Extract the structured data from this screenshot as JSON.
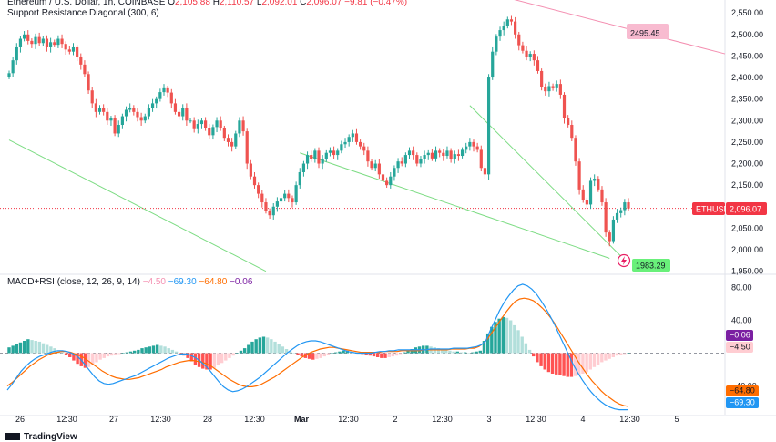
{
  "header": {
    "symbol_line": "Ethereum / U.S. Dollar, 1h, COINBASE",
    "o_label": "O",
    "o_value": "2,105.88",
    "h_label": "H",
    "h_value": "2,110.57",
    "l_label": "L",
    "l_value": "2,092.01",
    "c_label": "C",
    "c_value": "2,096.07",
    "change": "−9.81 (−0.47%)",
    "indicator1": "Support Resistance Diagonal (300, 6)",
    "indicator2_name": "MACD+RSI (close, 12, 26, 9, 14)",
    "indicator2_values": [
      "−4.50",
      "−69.30",
      "−64.80",
      "−0.06"
    ]
  },
  "footer": {
    "brand": "TradingView"
  },
  "colors": {
    "up": "#26a69a",
    "down": "#ef5350",
    "macd": "#2196f3",
    "signal": "#ff6d00",
    "support": "#4caf50",
    "resistance": "#f48fb1",
    "badge_ethusd": "#f23645"
  },
  "chart_data": [
    {
      "type": "candlestick",
      "symbol": "ETHUSD",
      "x_ticks": [
        "26",
        "12:30",
        "27",
        "12:30",
        "28",
        "12:30",
        "Mar",
        "12:30",
        "2",
        "12:30",
        "3",
        "12:30",
        "4",
        "12:30",
        "5"
      ],
      "y_ticks": [
        1950,
        2000,
        2050,
        2100,
        2150,
        2200,
        2250,
        2300,
        2350,
        2400,
        2450,
        2500,
        2550
      ],
      "y_tick_labels": [
        "1,950.00",
        "2,000.00",
        "2,050.00",
        "2,100.00",
        "2,150.00",
        "2,200.00",
        "2,250.00",
        "2,300.00",
        "2,350.00",
        "2,400.00",
        "2,450.00",
        "2,500.00",
        "2,550.00"
      ],
      "ylim": [
        1945,
        2580
      ],
      "closes": [
        2410,
        2440,
        2470,
        2490,
        2500,
        2485,
        2478,
        2494,
        2480,
        2490,
        2470,
        2482,
        2476,
        2490,
        2478,
        2465,
        2460,
        2470,
        2448,
        2430,
        2408,
        2370,
        2340,
        2320,
        2330,
        2320,
        2300,
        2305,
        2270,
        2290,
        2310,
        2325,
        2330,
        2320,
        2308,
        2300,
        2310,
        2330,
        2340,
        2350,
        2366,
        2375,
        2365,
        2340,
        2320,
        2310,
        2330,
        2300,
        2300,
        2280,
        2292,
        2300,
        2282,
        2266,
        2285,
        2300,
        2282,
        2260,
        2250,
        2240,
        2270,
        2300,
        2275,
        2200,
        2170,
        2150,
        2130,
        2110,
        2090,
        2080,
        2100,
        2112,
        2120,
        2130,
        2120,
        2110,
        2150,
        2180,
        2200,
        2220,
        2210,
        2230,
        2200,
        2210,
        2225,
        2230,
        2220,
        2230,
        2245,
        2250,
        2262,
        2270,
        2250,
        2240,
        2230,
        2205,
        2190,
        2200,
        2175,
        2160,
        2150,
        2170,
        2190,
        2205,
        2200,
        2220,
        2230,
        2220,
        2200,
        2210,
        2220,
        2225,
        2212,
        2230,
        2225,
        2218,
        2230,
        2210,
        2222,
        2218,
        2232,
        2240,
        2250,
        2240,
        2232,
        2190,
        2175,
        2400,
        2460,
        2495,
        2510,
        2520,
        2535,
        2530,
        2500,
        2475,
        2462,
        2448,
        2455,
        2440,
        2415,
        2378,
        2368,
        2380,
        2375,
        2385,
        2360,
        2305,
        2290,
        2260,
        2205,
        2140,
        2115,
        2105,
        2160,
        2165,
        2140,
        2110,
        2040,
        2020,
        2070,
        2085,
        2092,
        2110,
        2096
      ],
      "last_price_label": "2,096.07",
      "support_line": {
        "from": [
          0,
          2255
        ],
        "to": [
          68,
          1950
        ]
      },
      "support_line2": {
        "from": [
          77,
          2225
        ],
        "to": [
          159,
          1980
        ]
      },
      "support_line3": {
        "from": [
          122,
          2335
        ],
        "to": [
          162,
          1985
        ]
      },
      "resistance_line": {
        "from": [
          145,
          2590
        ],
        "to": [
          189,
          2455
        ]
      },
      "resistance_label": "2495.45",
      "support_label": "1983.29"
    },
    {
      "type": "macd",
      "y_ticks": [
        80,
        40,
        -40
      ],
      "y_tick_labels": [
        "80.00",
        "40.00",
        "−40.00"
      ],
      "ylim": [
        -75,
        95
      ],
      "histogram": [
        7,
        9,
        11,
        13,
        15,
        17,
        16,
        15,
        14,
        12,
        10,
        8,
        6,
        3,
        1,
        -2,
        -5,
        -9,
        -13,
        -16,
        -18,
        -17,
        -14,
        -11,
        -8,
        -6,
        -4,
        -3,
        -2,
        -1,
        0,
        1,
        2,
        3,
        4,
        6,
        7,
        8,
        9,
        10,
        9,
        8,
        6,
        4,
        2,
        -1,
        -3,
        -6,
        -10,
        -14,
        -17,
        -19,
        -20,
        -20,
        -18,
        -15,
        -12,
        -9,
        -6,
        -3,
        0,
        3,
        6,
        10,
        14,
        17,
        19,
        20,
        19,
        17,
        14,
        11,
        8,
        5,
        2,
        0,
        -2,
        -4,
        -6,
        -7,
        -8,
        -7,
        -6,
        -4,
        -2,
        0,
        1,
        2,
        3,
        3,
        2,
        1,
        0,
        -1,
        -2,
        -3,
        -4,
        -5,
        -6,
        -6,
        -5,
        -4,
        -3,
        -1,
        1,
        3,
        5,
        7,
        8,
        9,
        9,
        8,
        7,
        6,
        5,
        4,
        3,
        2,
        2,
        1,
        1,
        0,
        1,
        2,
        3,
        15,
        24,
        32,
        38,
        42,
        44,
        43,
        40,
        34,
        28,
        20,
        12,
        4,
        -4,
        -11,
        -16,
        -20,
        -23,
        -25,
        -26,
        -27,
        -28,
        -29,
        -29,
        -28,
        -27,
        -25,
        -23,
        -20,
        -17,
        -14,
        -11,
        -9,
        -7,
        -5,
        -3,
        -2,
        -1,
        0
      ],
      "macd": [
        -45,
        -38,
        -30,
        -22,
        -16,
        -11,
        -7,
        -4,
        -2,
        0,
        2,
        3,
        3,
        2,
        0,
        -3,
        -8,
        -15,
        -22,
        -29,
        -34,
        -37,
        -38,
        -37,
        -35,
        -33,
        -31,
        -29,
        -27,
        -24,
        -21,
        -18,
        -15,
        -12,
        -9,
        -6,
        -4,
        -2,
        -1,
        -1,
        -3,
        -6,
        -10,
        -15,
        -21,
        -28,
        -35,
        -41,
        -45,
        -47,
        -46,
        -44,
        -41,
        -37,
        -33,
        -29,
        -24,
        -19,
        -14,
        -9,
        -4,
        1,
        5,
        9,
        12,
        14,
        15,
        15,
        14,
        12,
        10,
        8,
        6,
        4,
        2,
        1,
        0,
        0,
        0,
        0,
        1,
        2,
        2,
        3,
        3,
        4,
        4,
        4,
        4,
        4,
        4,
        4,
        5,
        5,
        5,
        5,
        5,
        6,
        6,
        6,
        6,
        7,
        8,
        10,
        15,
        28,
        40,
        52,
        62,
        70,
        77,
        82,
        84,
        82,
        78,
        72,
        64,
        55,
        45,
        34,
        22,
        10,
        -2,
        -14,
        -24,
        -33,
        -41,
        -48,
        -54,
        -59,
        -63,
        -66,
        -68,
        -69,
        -69,
        -69
      ],
      "signal": [
        -40,
        -36,
        -31,
        -26,
        -21,
        -16,
        -12,
        -8,
        -5,
        -2,
        0,
        1,
        2,
        2,
        1,
        -1,
        -3,
        -6,
        -10,
        -14,
        -18,
        -22,
        -25,
        -28,
        -30,
        -31,
        -32,
        -32,
        -31,
        -30,
        -28,
        -26,
        -24,
        -22,
        -20,
        -17,
        -15,
        -13,
        -11,
        -10,
        -9,
        -9,
        -10,
        -11,
        -13,
        -16,
        -20,
        -24,
        -28,
        -32,
        -35,
        -38,
        -40,
        -41,
        -41,
        -40,
        -38,
        -35,
        -32,
        -29,
        -25,
        -21,
        -17,
        -13,
        -9,
        -5,
        -2,
        1,
        3,
        5,
        6,
        7,
        7,
        6,
        5,
        4,
        3,
        2,
        1,
        1,
        1,
        1,
        1,
        2,
        2,
        2,
        2,
        3,
        3,
        3,
        3,
        3,
        4,
        4,
        4,
        4,
        4,
        4,
        5,
        5,
        5,
        5,
        6,
        6,
        8,
        12,
        18,
        26,
        34,
        42,
        50,
        57,
        63,
        66,
        67,
        66,
        64,
        60,
        55,
        49,
        42,
        34,
        25,
        16,
        7,
        -2,
        -11,
        -19,
        -27,
        -34,
        -40,
        -46,
        -51,
        -55,
        -59,
        -62,
        -64,
        -65
      ],
      "last_labels": {
        "hist": "−0.06",
        "zero_ref": "−4.50",
        "signal": "−64.80",
        "macd": "−69.30"
      }
    }
  ]
}
